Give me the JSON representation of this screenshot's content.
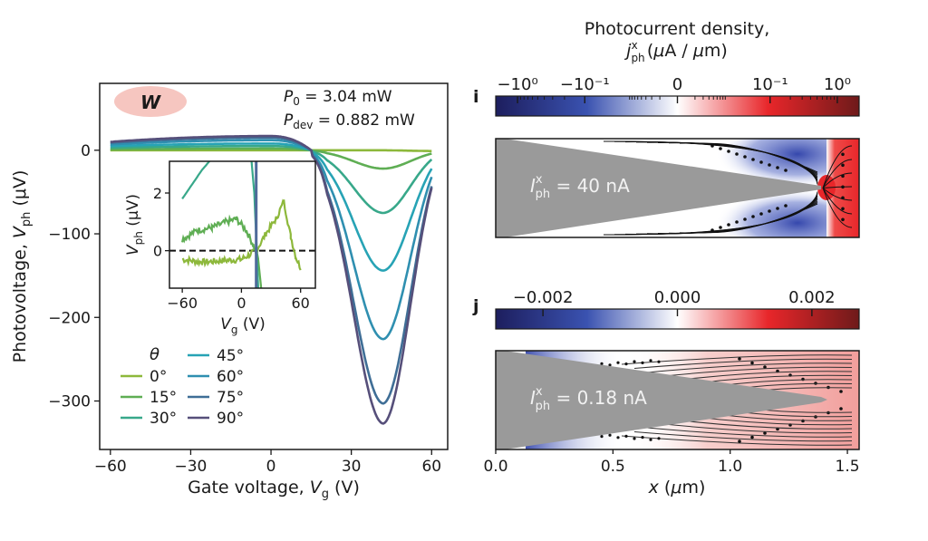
{
  "chart_data": [
    {
      "id": "main",
      "type": "line",
      "xlabel": "Gate voltage, V_g (V)",
      "ylabel": "Photovoltage, V_ph (μV)",
      "xlim": [
        -64,
        66
      ],
      "ylim": [
        -358,
        80
      ],
      "xticks": [
        -60,
        -30,
        0,
        30,
        60
      ],
      "yticks": [
        0,
        -100,
        -200,
        -300
      ],
      "annotations": {
        "badge": "W",
        "badge_color": "#f6c6c0",
        "p0_label": "P",
        "p0_sub": "0",
        "p0_value": " = 3.04 mW",
        "pdev_label": "P",
        "pdev_sub": "dev",
        "pdev_value": " = 0.882 mW"
      },
      "legend": {
        "title": "θ",
        "placement": "lower-left"
      },
      "series": [
        {
          "name": "0°",
          "color": "#8db83b",
          "left": 0,
          "plateau": 0,
          "min": 0,
          "right": -1
        },
        {
          "name": "15°",
          "color": "#5fae54",
          "left": 1,
          "plateau": 2,
          "min": -22,
          "right": -4
        },
        {
          "name": "30°",
          "color": "#38a88a",
          "left": 3,
          "plateau": 5,
          "min": -75,
          "right": -11
        },
        {
          "name": "45°",
          "color": "#27a3b5",
          "left": 5,
          "plateau": 8,
          "min": -144,
          "right": -22
        },
        {
          "name": "60°",
          "color": "#2f8fb0",
          "left": 7,
          "plateau": 12,
          "min": -226,
          "right": -32
        },
        {
          "name": "75°",
          "color": "#3f6e96",
          "left": 9,
          "plateau": 15,
          "min": -303,
          "right": -43
        },
        {
          "name": "90°",
          "color": "#564f7a",
          "left": 10,
          "plateau": 17,
          "min": -327,
          "right": -45
        }
      ],
      "curve_model": {
        "crossing_V": 15,
        "min_V": 42
      }
    },
    {
      "id": "inset",
      "type": "line",
      "xlabel": "V_g (V)",
      "ylabel": "V_ph (μV)",
      "xlim": [
        -73,
        75
      ],
      "ylim": [
        -1.3,
        3.1
      ],
      "xticks": [
        -60,
        0,
        60
      ],
      "yticks": [
        0,
        2
      ],
      "reference_line": {
        "y": 0,
        "style": "dashed"
      },
      "series": [
        {
          "name": "0°",
          "color": "#8db83b",
          "points": [
            [
              -60,
              -0.3
            ],
            [
              -40,
              -0.4
            ],
            [
              -20,
              -0.35
            ],
            [
              0,
              -0.3
            ],
            [
              10,
              -0.1
            ],
            [
              15,
              0.0
            ],
            [
              25,
              0.6
            ],
            [
              35,
              1.1
            ],
            [
              43,
              1.7
            ],
            [
              50,
              0.5
            ],
            [
              55,
              -0.2
            ],
            [
              60,
              -0.6
            ]
          ]
        },
        {
          "name": "15°",
          "color": "#5fae54",
          "points": [
            [
              -60,
              0.4
            ],
            [
              -45,
              0.7
            ],
            [
              -30,
              0.8
            ],
            [
              -15,
              1.0
            ],
            [
              -5,
              1.1
            ],
            [
              5,
              0.7
            ],
            [
              12,
              0.2
            ],
            [
              17,
              -0.3
            ],
            [
              20,
              -1.3
            ]
          ]
        },
        {
          "name": "30°",
          "color": "#38a88a",
          "points": [
            [
              -60,
              1.8
            ],
            [
              -50,
              2.3
            ],
            [
              -40,
              2.8
            ],
            [
              -30,
              3.2
            ]
          ]
        },
        {
          "name": "30°-steep",
          "color": "#38a88a",
          "points": [
            [
              10,
              3.2
            ],
            [
              13,
              2.0
            ],
            [
              15,
              0.5
            ],
            [
              17,
              -1.3
            ]
          ]
        },
        {
          "name": "45°-90°",
          "color": "#4f6a9a",
          "points": [
            [
              15,
              3.2
            ],
            [
              15,
              -1.3
            ]
          ]
        }
      ]
    },
    {
      "id": "map-i",
      "type": "heatmap",
      "panel_label": "i",
      "colorbar_title_line1": "Photocurrent density,",
      "colorbar_title_line2": "j_ph^x (μA / μm)",
      "colorbar_ticks": [
        "−10⁰",
        "−10⁻¹",
        "0",
        "10⁻¹",
        "10⁰"
      ],
      "colormap": [
        "#1d1e5e",
        "#3b54b5",
        "#ffffff",
        "#e8262a",
        "#6e1a1a"
      ],
      "overlay_label": "I_ph^x = 40 nA",
      "overlay_main": "I",
      "overlay_sup": "x",
      "overlay_sub": "ph",
      "overlay_value": " = 40 nA",
      "tip_x_um": 1.42
    },
    {
      "id": "map-j",
      "type": "heatmap",
      "panel_label": "j",
      "colorbar_ticks": [
        "−0.002",
        "0.000",
        "0.002"
      ],
      "colormap": [
        "#1d1e5e",
        "#3b54b5",
        "#ffffff",
        "#e8262a",
        "#6e1a1a"
      ],
      "overlay_label": "I_ph^x = 0.18 nA",
      "overlay_main": "I",
      "overlay_sup": "x",
      "overlay_sub": "ph",
      "overlay_value": " = 0.18 nA",
      "xlabel": "x (μm)",
      "xlim": [
        0,
        1.55
      ],
      "xticks": [
        "0.0",
        "0.5",
        "1.0",
        "1.5"
      ],
      "tip_x_um": 1.42
    }
  ]
}
